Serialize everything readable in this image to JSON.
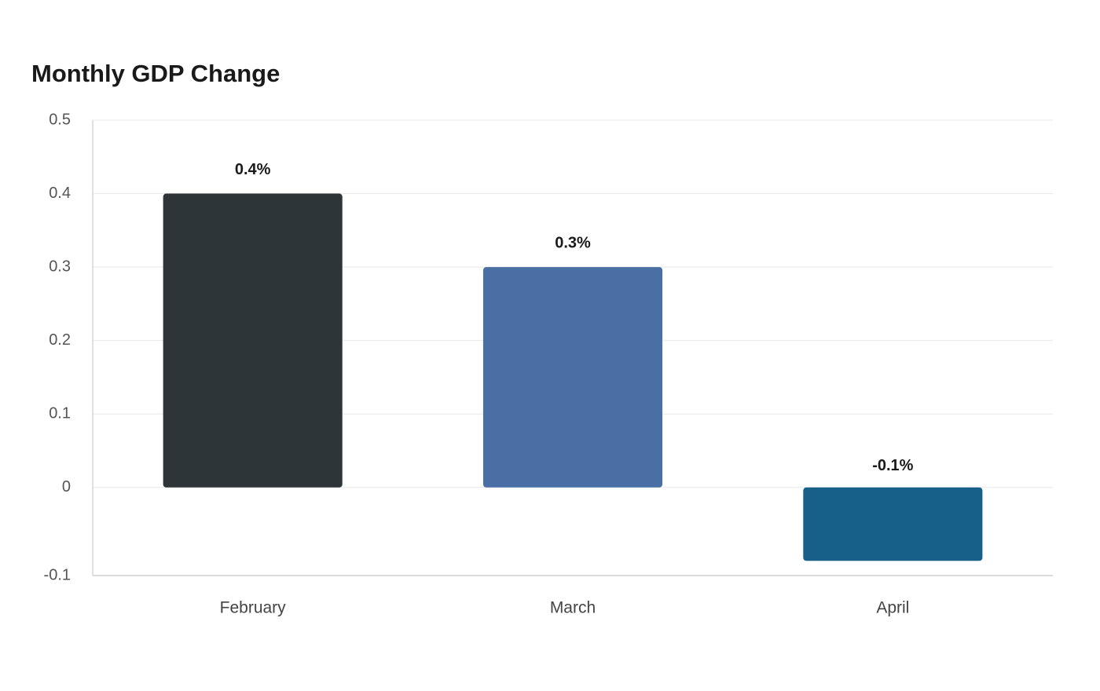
{
  "chart_data": {
    "type": "bar",
    "title": "Monthly GDP Change",
    "categories": [
      "February",
      "March",
      "April"
    ],
    "values": [
      0.4,
      0.3,
      -0.1
    ],
    "value_labels": [
      "0.4%",
      "0.3%",
      "-0.1%"
    ],
    "colors": [
      "#2e3538",
      "#4a6fa5",
      "#176089"
    ],
    "ylim": [
      -0.12,
      0.5
    ],
    "yticks": [
      {
        "value": -0.12,
        "label": "-0.1"
      },
      0,
      0.1,
      0.2,
      0.3,
      0.4,
      0.5
    ],
    "grid": true
  }
}
